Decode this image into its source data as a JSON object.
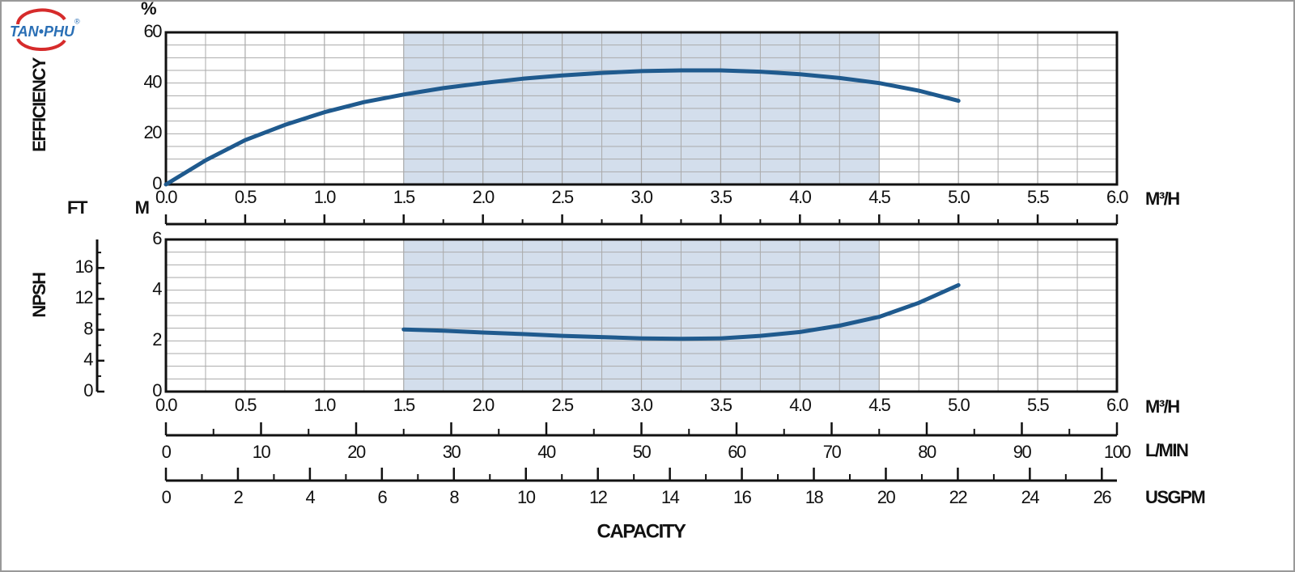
{
  "logo": {
    "brand": "TAN•PHU",
    "registered": "®"
  },
  "chart_data": [
    {
      "type": "line",
      "ylabel": "EFFICIENCY",
      "yunit": "%",
      "x_unit": "M³/H",
      "xlim": [
        0,
        6
      ],
      "xticks": [
        {
          "value": 0,
          "label": "0.0"
        },
        0.5,
        {
          "value": 1,
          "label": "1.0"
        },
        1.5,
        {
          "value": 2,
          "label": "2.0"
        },
        2.5,
        {
          "value": 3,
          "label": "3.0"
        },
        3.5,
        {
          "value": 4,
          "label": "4.0"
        },
        4.5,
        {
          "value": 5,
          "label": "5.0"
        },
        5.5,
        {
          "value": 6,
          "label": "6.0"
        }
      ],
      "minor_xticks": [
        0.25,
        0.75,
        1.25,
        1.75,
        2.25,
        2.75,
        3.25,
        3.75,
        4.25,
        4.75,
        5.25,
        5.75
      ],
      "ylim": [
        0,
        60
      ],
      "yticks": [
        0,
        20,
        40,
        60
      ],
      "minor_yticks": [
        5,
        10,
        15,
        25,
        30,
        35,
        45,
        50,
        55
      ],
      "grid": true,
      "shaded_xrange": [
        1.5,
        4.5
      ],
      "shade_color": "#d3deec",
      "color": "#1f5a8e",
      "x": [
        0,
        0.25,
        0.5,
        0.75,
        1,
        1.25,
        1.5,
        1.75,
        2,
        2.25,
        2.5,
        2.75,
        3,
        3.25,
        3.5,
        3.75,
        4,
        4.25,
        4.5,
        4.75,
        5
      ],
      "values": [
        0,
        9.5,
        17.5,
        23.5,
        28.5,
        32.5,
        35.5,
        38,
        40,
        41.7,
        43,
        44,
        44.7,
        45,
        45,
        44.5,
        43.5,
        42,
        40,
        37,
        33
      ]
    },
    {
      "type": "line",
      "ylabel": "NPSH",
      "yunit": "M",
      "y2unit": "FT",
      "x_unit": "M³/H",
      "xlim": [
        0,
        6
      ],
      "xticks": [
        {
          "value": 0,
          "label": "0.0"
        },
        0.5,
        {
          "value": 1,
          "label": "1.0"
        },
        1.5,
        {
          "value": 2,
          "label": "2.0"
        },
        2.5,
        {
          "value": 3,
          "label": "3.0"
        },
        3.5,
        {
          "value": 4,
          "label": "4.0"
        },
        4.5,
        {
          "value": 5,
          "label": "5.0"
        },
        5.5,
        {
          "value": 6,
          "label": "6.0"
        }
      ],
      "minor_xticks": [
        0.25,
        0.75,
        1.25,
        1.75,
        2.25,
        2.75,
        3.25,
        3.75,
        4.25,
        4.75,
        5.25,
        5.75
      ],
      "ylim": [
        0,
        6
      ],
      "yticks": [
        0,
        2,
        4,
        6
      ],
      "minor_yticks": [
        0.5,
        1,
        1.5,
        2.5,
        3,
        3.5,
        4.5,
        5,
        5.5
      ],
      "y2lim": [
        0,
        19.685
      ],
      "y2ticks": [
        0,
        4,
        8,
        12,
        16
      ],
      "minor_y2ticks": [
        2,
        6,
        10,
        14,
        18
      ],
      "grid": true,
      "shaded_xrange": [
        1.5,
        4.5
      ],
      "shade_color": "#d3deec",
      "color": "#1f5a8e",
      "x": [
        1.5,
        1.75,
        2,
        2.25,
        2.5,
        2.75,
        3,
        3.25,
        3.5,
        3.75,
        4,
        4.25,
        4.5,
        4.75,
        5
      ],
      "values": [
        2.45,
        2.4,
        2.33,
        2.27,
        2.2,
        2.15,
        2.1,
        2.08,
        2.1,
        2.2,
        2.35,
        2.6,
        2.95,
        3.5,
        4.2
      ]
    }
  ],
  "capacity_axes": {
    "title": "CAPACITY",
    "axes": [
      {
        "unit": "L/MIN",
        "xlim": [
          0,
          100
        ],
        "xticks": [
          0,
          10,
          20,
          30,
          40,
          50,
          60,
          70,
          80,
          90,
          100
        ],
        "minor_xticks": [
          5,
          15,
          25,
          35,
          45,
          55,
          65,
          75,
          85,
          95
        ]
      },
      {
        "unit": "USGPM",
        "xlim": [
          0,
          26.42
        ],
        "xticks": [
          0,
          2,
          4,
          6,
          8,
          10,
          12,
          14,
          16,
          18,
          20,
          22,
          24,
          26
        ],
        "minor_xticks": [
          1,
          3,
          5,
          7,
          9,
          11,
          13,
          15,
          17,
          19,
          21,
          23,
          25
        ]
      }
    ]
  }
}
